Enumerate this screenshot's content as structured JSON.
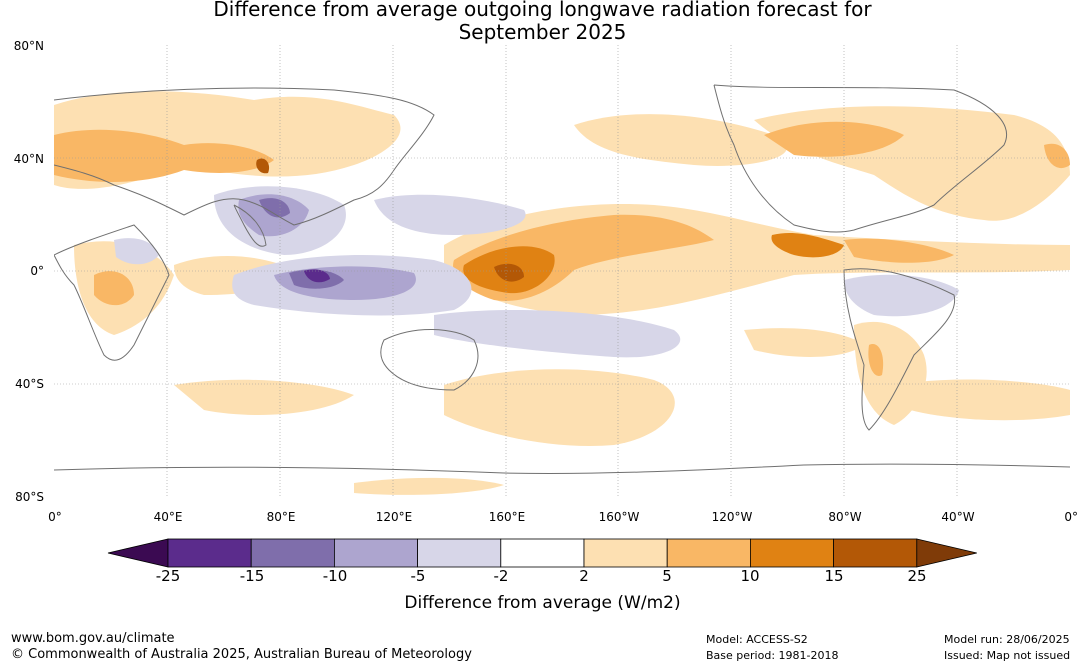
{
  "title_line1": "Difference from average outgoing longwave radiation forecast for",
  "title_line2": "September 2025",
  "lat_labels": [
    "80°N",
    "40°N",
    "0°",
    "40°S",
    "80°S"
  ],
  "lon_labels": [
    "0°",
    "40°E",
    "80°E",
    "120°E",
    "160°E",
    "160°W",
    "120°W",
    "80°W",
    "40°W",
    "0°"
  ],
  "colorbar": {
    "ticks": [
      "-25",
      "-15",
      "-10",
      "-5",
      "-2",
      "2",
      "5",
      "10",
      "15",
      "25"
    ],
    "colors": [
      "#3b0a52",
      "#5b2c8c",
      "#7f6eab",
      "#ada5cf",
      "#d7d6e8",
      "#ffffff",
      "#fde0b2",
      "#f9b765",
      "#e08213",
      "#b35806",
      "#7f3b08"
    ],
    "title": "Difference from average (W/m2)"
  },
  "footer": {
    "website": "www.bom.gov.au/climate",
    "copyright": "© Commonwealth of Australia 2025, Australian Bureau of Meteorology",
    "model": "Model: ACCESS-S2",
    "base_period": "Base period: 1981-2018",
    "model_run": "Model run: 28/06/2025",
    "issued": "Issued: Map not issued"
  }
}
